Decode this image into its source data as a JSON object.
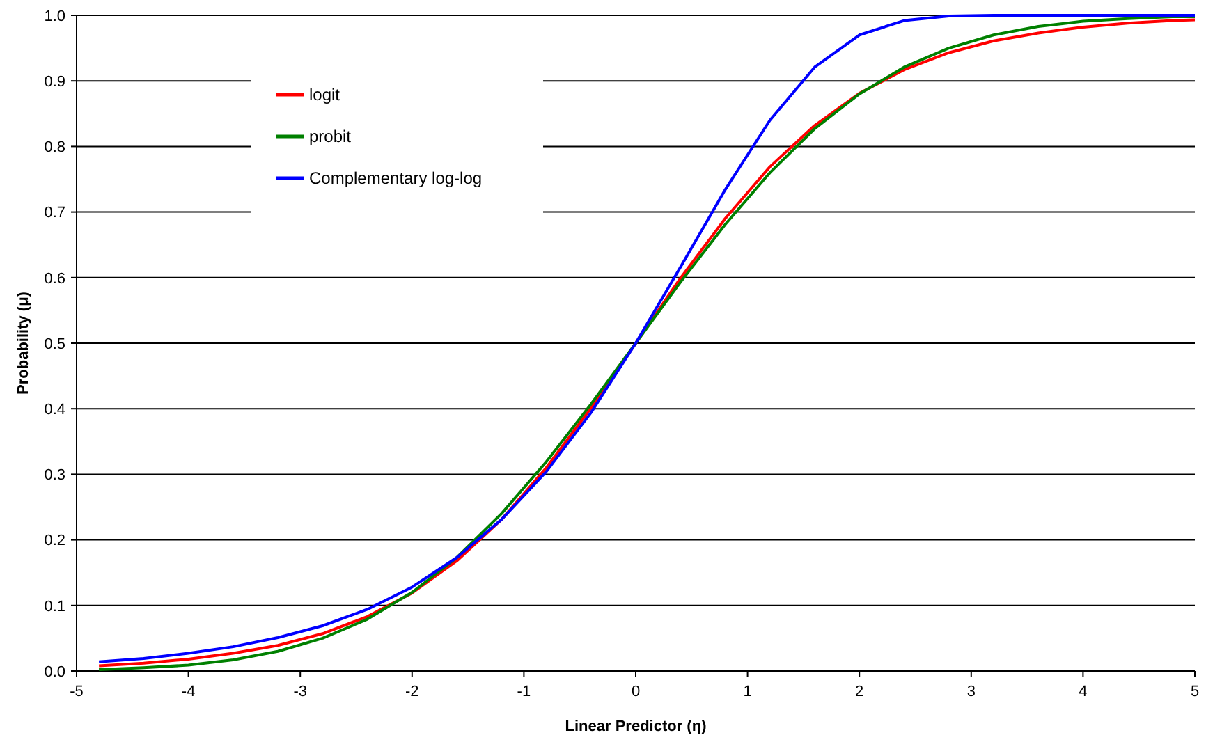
{
  "chart_data": {
    "type": "line",
    "xlabel": "Linear Predictor (η)",
    "ylabel": "Probability (μ)",
    "x": [
      -4.8,
      -4.4,
      -4,
      -3.6,
      -3.2,
      -2.8,
      -2.4,
      -2,
      -1.6,
      -1.2,
      -0.8,
      -0.4,
      0,
      0.4,
      0.8,
      1.2,
      1.6,
      2,
      2.4,
      2.8,
      3.2,
      3.6,
      4,
      4.4,
      4.8,
      5
    ],
    "series": [
      {
        "name": "logit",
        "color": "#ff0000",
        "values": [
          0.008,
          0.012,
          0.018,
          0.027,
          0.039,
          0.057,
          0.083,
          0.119,
          0.168,
          0.231,
          0.31,
          0.401,
          0.5,
          0.599,
          0.69,
          0.769,
          0.832,
          0.881,
          0.917,
          0.943,
          0.961,
          0.973,
          0.982,
          0.988,
          0.992,
          0.993
        ]
      },
      {
        "name": "probit",
        "color": "#008000",
        "values": [
          0.002,
          0.005,
          0.009,
          0.017,
          0.03,
          0.05,
          0.079,
          0.12,
          0.173,
          0.24,
          0.319,
          0.407,
          0.5,
          0.593,
          0.681,
          0.76,
          0.827,
          0.88,
          0.921,
          0.95,
          0.97,
          0.983,
          0.991,
          0.995,
          0.998,
          0.998
        ]
      },
      {
        "name": "Complementary log-log",
        "color": "#0000ff",
        "values": [
          0.014,
          0.019,
          0.027,
          0.037,
          0.051,
          0.069,
          0.094,
          0.128,
          0.173,
          0.231,
          0.304,
          0.394,
          0.5,
          0.616,
          0.734,
          0.84,
          0.921,
          0.97,
          0.992,
          0.999,
          1,
          1,
          1,
          1,
          1,
          1
        ]
      }
    ],
    "xlim": [
      -5,
      5
    ],
    "xticks": [
      -5,
      -4,
      -3,
      -2,
      -1,
      0,
      1,
      2,
      3,
      4,
      5
    ],
    "ylim": [
      0,
      1
    ],
    "yticks": [
      {
        "value": 0,
        "label": "0.0"
      },
      0.1,
      0.2,
      0.3,
      0.4,
      0.5,
      0.6,
      0.7,
      0.8,
      0.9,
      {
        "value": 1,
        "label": "1.0"
      }
    ],
    "grid": "y",
    "legend": "top left",
    "marker": "none",
    "line_style": "solid"
  }
}
